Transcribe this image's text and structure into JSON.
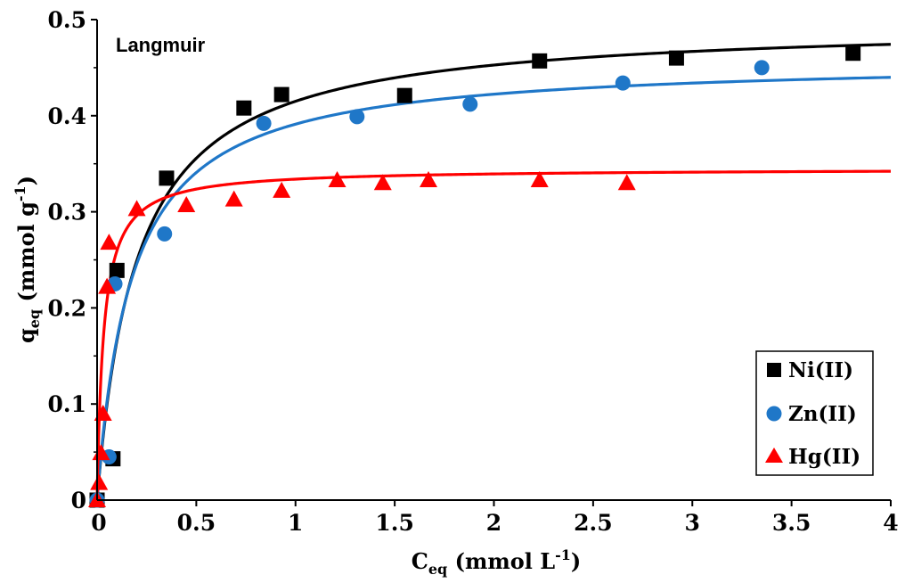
{
  "chart_data": {
    "type": "scatter",
    "annotation": "Langmuir",
    "xlabel": {
      "main": "C",
      "sub": "eq",
      "rest": " (mmol L",
      "sup": "-1",
      "close": ")"
    },
    "ylabel": {
      "main": "q",
      "sub": "eq",
      "rest": " (mmol g",
      "sup": "-1",
      "close": ")"
    },
    "xlim": [
      0,
      4
    ],
    "ylim": [
      0,
      0.5
    ],
    "x_ticks": [
      {
        "value": 0,
        "label": "0"
      },
      {
        "value": 0.5,
        "label": "0.5"
      },
      {
        "value": 1,
        "label": "1"
      },
      {
        "value": 1.5,
        "label": "1.5"
      },
      {
        "value": 2,
        "label": "2"
      },
      {
        "value": 2.5,
        "label": "2.5"
      },
      {
        "value": 3,
        "label": "3"
      },
      {
        "value": 3.5,
        "label": "3.5"
      },
      {
        "value": 4,
        "label": "4"
      }
    ],
    "y_ticks": [
      {
        "value": 0,
        "label": "0"
      },
      {
        "value": 0.1,
        "label": "0.1"
      },
      {
        "value": 0.2,
        "label": "0.2"
      },
      {
        "value": 0.3,
        "label": "0.3"
      },
      {
        "value": 0.4,
        "label": "0.4"
      },
      {
        "value": 0.5,
        "label": "0.5"
      }
    ],
    "legend_position": "bottom-right",
    "series": [
      {
        "name": "Ni(II)",
        "marker": "square",
        "color": "#000000",
        "fit": {
          "model": "langmuir",
          "qmax": 0.498,
          "KL": 5.0,
          "color": "#000000"
        },
        "points": [
          {
            "x": 0.0,
            "y": 0.0
          },
          {
            "x": 0.08,
            "y": 0.043
          },
          {
            "x": 0.1,
            "y": 0.239
          },
          {
            "x": 0.35,
            "y": 0.335
          },
          {
            "x": 0.74,
            "y": 0.408
          },
          {
            "x": 0.93,
            "y": 0.422
          },
          {
            "x": 1.55,
            "y": 0.421
          },
          {
            "x": 2.23,
            "y": 0.457
          },
          {
            "x": 2.92,
            "y": 0.46
          },
          {
            "x": 3.81,
            "y": 0.465
          }
        ]
      },
      {
        "name": "Zn(II)",
        "marker": "circle",
        "color": "#1f77c8",
        "fit": {
          "model": "langmuir",
          "qmax": 0.459,
          "KL": 5.77,
          "color": "#1f77c8"
        },
        "points": [
          {
            "x": 0.0,
            "y": 0.0
          },
          {
            "x": 0.06,
            "y": 0.045
          },
          {
            "x": 0.09,
            "y": 0.225
          },
          {
            "x": 0.34,
            "y": 0.277
          },
          {
            "x": 0.84,
            "y": 0.392
          },
          {
            "x": 1.31,
            "y": 0.399
          },
          {
            "x": 1.88,
            "y": 0.412
          },
          {
            "x": 2.65,
            "y": 0.434
          },
          {
            "x": 3.35,
            "y": 0.45
          }
        ]
      },
      {
        "name": "Hg(II)",
        "marker": "triangle",
        "color": "#ff0000",
        "fit": {
          "model": "langmuir",
          "qmax": 0.345,
          "KL": 30.3,
          "color": "#ff0000"
        },
        "points": [
          {
            "x": 0.0,
            "y": 0.0
          },
          {
            "x": 0.01,
            "y": 0.018
          },
          {
            "x": 0.02,
            "y": 0.049
          },
          {
            "x": 0.03,
            "y": 0.09
          },
          {
            "x": 0.05,
            "y": 0.222
          },
          {
            "x": 0.06,
            "y": 0.268
          },
          {
            "x": 0.2,
            "y": 0.303
          },
          {
            "x": 0.45,
            "y": 0.307
          },
          {
            "x": 0.69,
            "y": 0.313
          },
          {
            "x": 0.93,
            "y": 0.322
          },
          {
            "x": 1.21,
            "y": 0.333
          },
          {
            "x": 1.44,
            "y": 0.33
          },
          {
            "x": 1.67,
            "y": 0.333
          },
          {
            "x": 2.23,
            "y": 0.333
          },
          {
            "x": 2.67,
            "y": 0.33
          }
        ]
      }
    ]
  }
}
